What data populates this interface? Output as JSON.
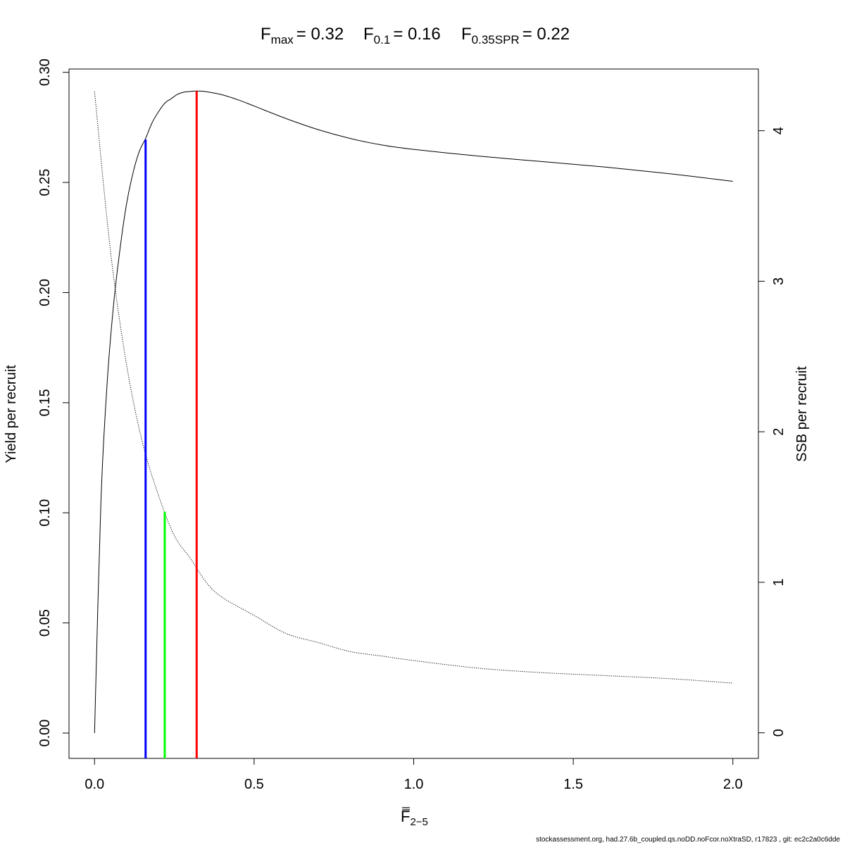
{
  "chart_data": {
    "type": "line",
    "title": {
      "fmax_label": "F",
      "fmax_sub": "max",
      "fmax_value": "= 0.32",
      "f01_label": "F",
      "f01_sub": "0.1",
      "f01_value": "= 0.16",
      "fspr_label": "F",
      "fspr_sub": "0.35SPR",
      "fspr_value": "= 0.22"
    },
    "xlabel": "F",
    "xlabel_sub": "2−5",
    "ylabel": "Yield per recruit",
    "ylabel_right": "SSB per recruit",
    "xlim": [
      -0.08,
      2.08
    ],
    "ylim": [
      -0.0115,
      0.3015
    ],
    "ylim_right": [
      -0.17,
      4.41
    ],
    "x_ticks": [
      "0.0",
      "0.5",
      "1.0",
      "1.5",
      "2.0"
    ],
    "y_ticks": [
      "0.00",
      "0.05",
      "0.10",
      "0.15",
      "0.20",
      "0.25",
      "0.30"
    ],
    "y_right_ticks": [
      "0",
      "1",
      "2",
      "3",
      "4"
    ],
    "series": [
      {
        "axis": "left",
        "style": "solid",
        "color": "#000000",
        "x": [
          0,
          0.02,
          0.04,
          0.06,
          0.08,
          0.1,
          0.12,
          0.14,
          0.16,
          0.18,
          0.2,
          0.22,
          0.24,
          0.26,
          0.28,
          0.3,
          0.32,
          0.35,
          0.4,
          0.45,
          0.5,
          0.6,
          0.7,
          0.8,
          0.9,
          1.0,
          1.2,
          1.4,
          1.6,
          1.8,
          2.0
        ],
        "y": [
          0,
          0.105,
          0.16,
          0.195,
          0.22,
          0.24,
          0.254,
          0.264,
          0.27,
          0.277,
          0.282,
          0.286,
          0.288,
          0.29,
          0.291,
          0.2913,
          0.2915,
          0.2912,
          0.2898,
          0.2875,
          0.2847,
          0.279,
          0.274,
          0.27,
          0.267,
          0.265,
          0.262,
          0.2595,
          0.257,
          0.254,
          0.2505
        ]
      },
      {
        "axis": "right",
        "style": "dotted",
        "color": "#000000",
        "x": [
          0,
          0.05,
          0.1,
          0.15,
          0.2,
          0.25,
          0.3,
          0.35,
          0.4,
          0.5,
          0.6,
          0.7,
          0.8,
          0.9,
          1.0,
          1.2,
          1.4,
          1.6,
          1.8,
          2.0
        ],
        "y": [
          4.26,
          3.2,
          2.45,
          1.93,
          1.58,
          1.31,
          1.16,
          1.0,
          0.9,
          0.78,
          0.66,
          0.6,
          0.54,
          0.51,
          0.48,
          0.43,
          0.4,
          0.38,
          0.36,
          0.33
        ]
      }
    ],
    "reference_lines": [
      {
        "name": "F0.1",
        "x": 0.16,
        "y_top": 0.2695,
        "color": "#0000ff"
      },
      {
        "name": "F0.35SPR",
        "x": 0.22,
        "y_top": 0.1005,
        "color": "#00ff00"
      },
      {
        "name": "Fmax",
        "x": 0.32,
        "y_top": 0.2915,
        "color": "#ff0000"
      }
    ],
    "footer": "stockassessment.org, had.27.6b_coupled.qs.noDD.noFcor.noXtraSD, r17823 , git: ec2c2a0c6dde"
  }
}
